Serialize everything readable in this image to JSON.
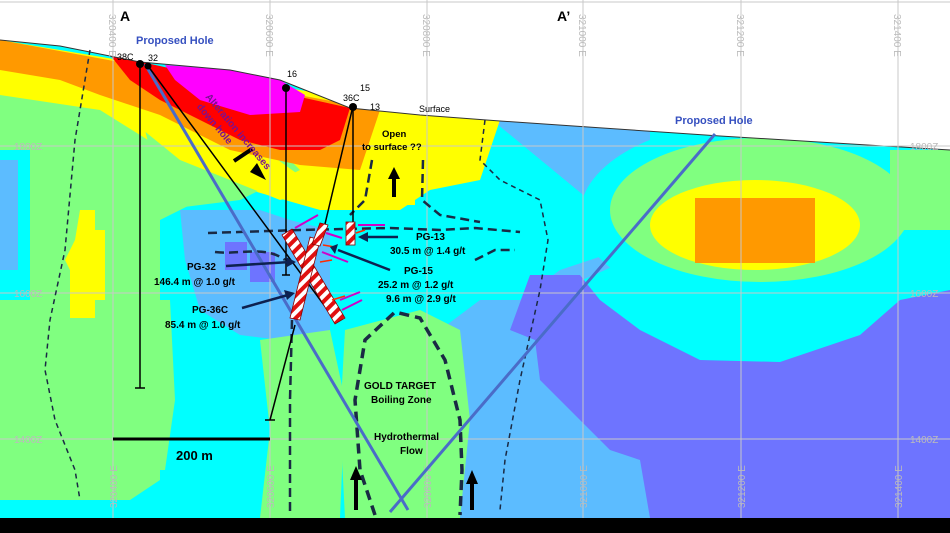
{
  "section": {
    "start_label": "A",
    "end_label": "A’",
    "surface_label": "Surface",
    "scale_bar_label": "200 m"
  },
  "grid": {
    "eastings": [
      "320400 E",
      "320600 E",
      "320800 E",
      "321000 E",
      "321200 E",
      "321400 E"
    ],
    "elevations": [
      "1800Z",
      "1600Z",
      "1400Z"
    ]
  },
  "holes": {
    "h38c": "38C",
    "h32": "32",
    "h16": "16",
    "h15": "15",
    "h36c": "36C",
    "h13": "13"
  },
  "proposed": {
    "left": "Proposed Hole",
    "right": "Proposed Hole",
    "color": "#4a6cc8"
  },
  "annotations": {
    "alteration_1": "Alteration increases",
    "alteration_2": "down hole",
    "open_1": "Open",
    "open_2": "to surface ??",
    "gold_1": "GOLD TARGET",
    "gold_2": "Boiling Zone",
    "flow_1": "Hydrothermal",
    "flow_2": "Flow"
  },
  "intercepts": {
    "pg13": {
      "name": "PG-13",
      "line1": "30.5 m  @ 1.4 g/t"
    },
    "pg15": {
      "name": "PG-15",
      "line1": "25.2 m  @ 1.2 g/t",
      "line2": "9.6 m @ 2.9 g/t"
    },
    "pg32": {
      "name": "PG-32",
      "line1": "146.4 m @ 1.0 g/t"
    },
    "pg36c": {
      "name": "PG-36C",
      "line1": "85.4 m @ 1.0 g/t"
    }
  },
  "colors": {
    "purple": "#6e74ff",
    "light_blue": "#5cbcff",
    "cyan": "#00ffff",
    "green": "#80ff80",
    "yellow": "#ffff00",
    "orange": "#ff9900",
    "red": "#ff0000",
    "magenta": "#ff00ff"
  }
}
